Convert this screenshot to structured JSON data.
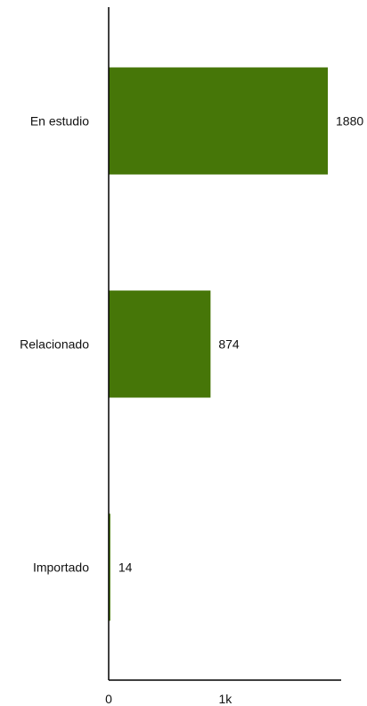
{
  "chart_data": {
    "type": "bar",
    "orientation": "horizontal",
    "categories": [
      "En estudio",
      "Relacionado",
      "Importado"
    ],
    "values": [
      1880,
      874,
      14
    ],
    "value_labels": [
      "1880",
      "874",
      "14"
    ],
    "xlim": [
      0,
      2000
    ],
    "x_ticks": [
      0,
      1000
    ],
    "x_tick_labels": [
      "0",
      "1k"
    ],
    "bar_color": "#467608",
    "axis_color": "#000000",
    "grid": false,
    "legend": "none"
  }
}
